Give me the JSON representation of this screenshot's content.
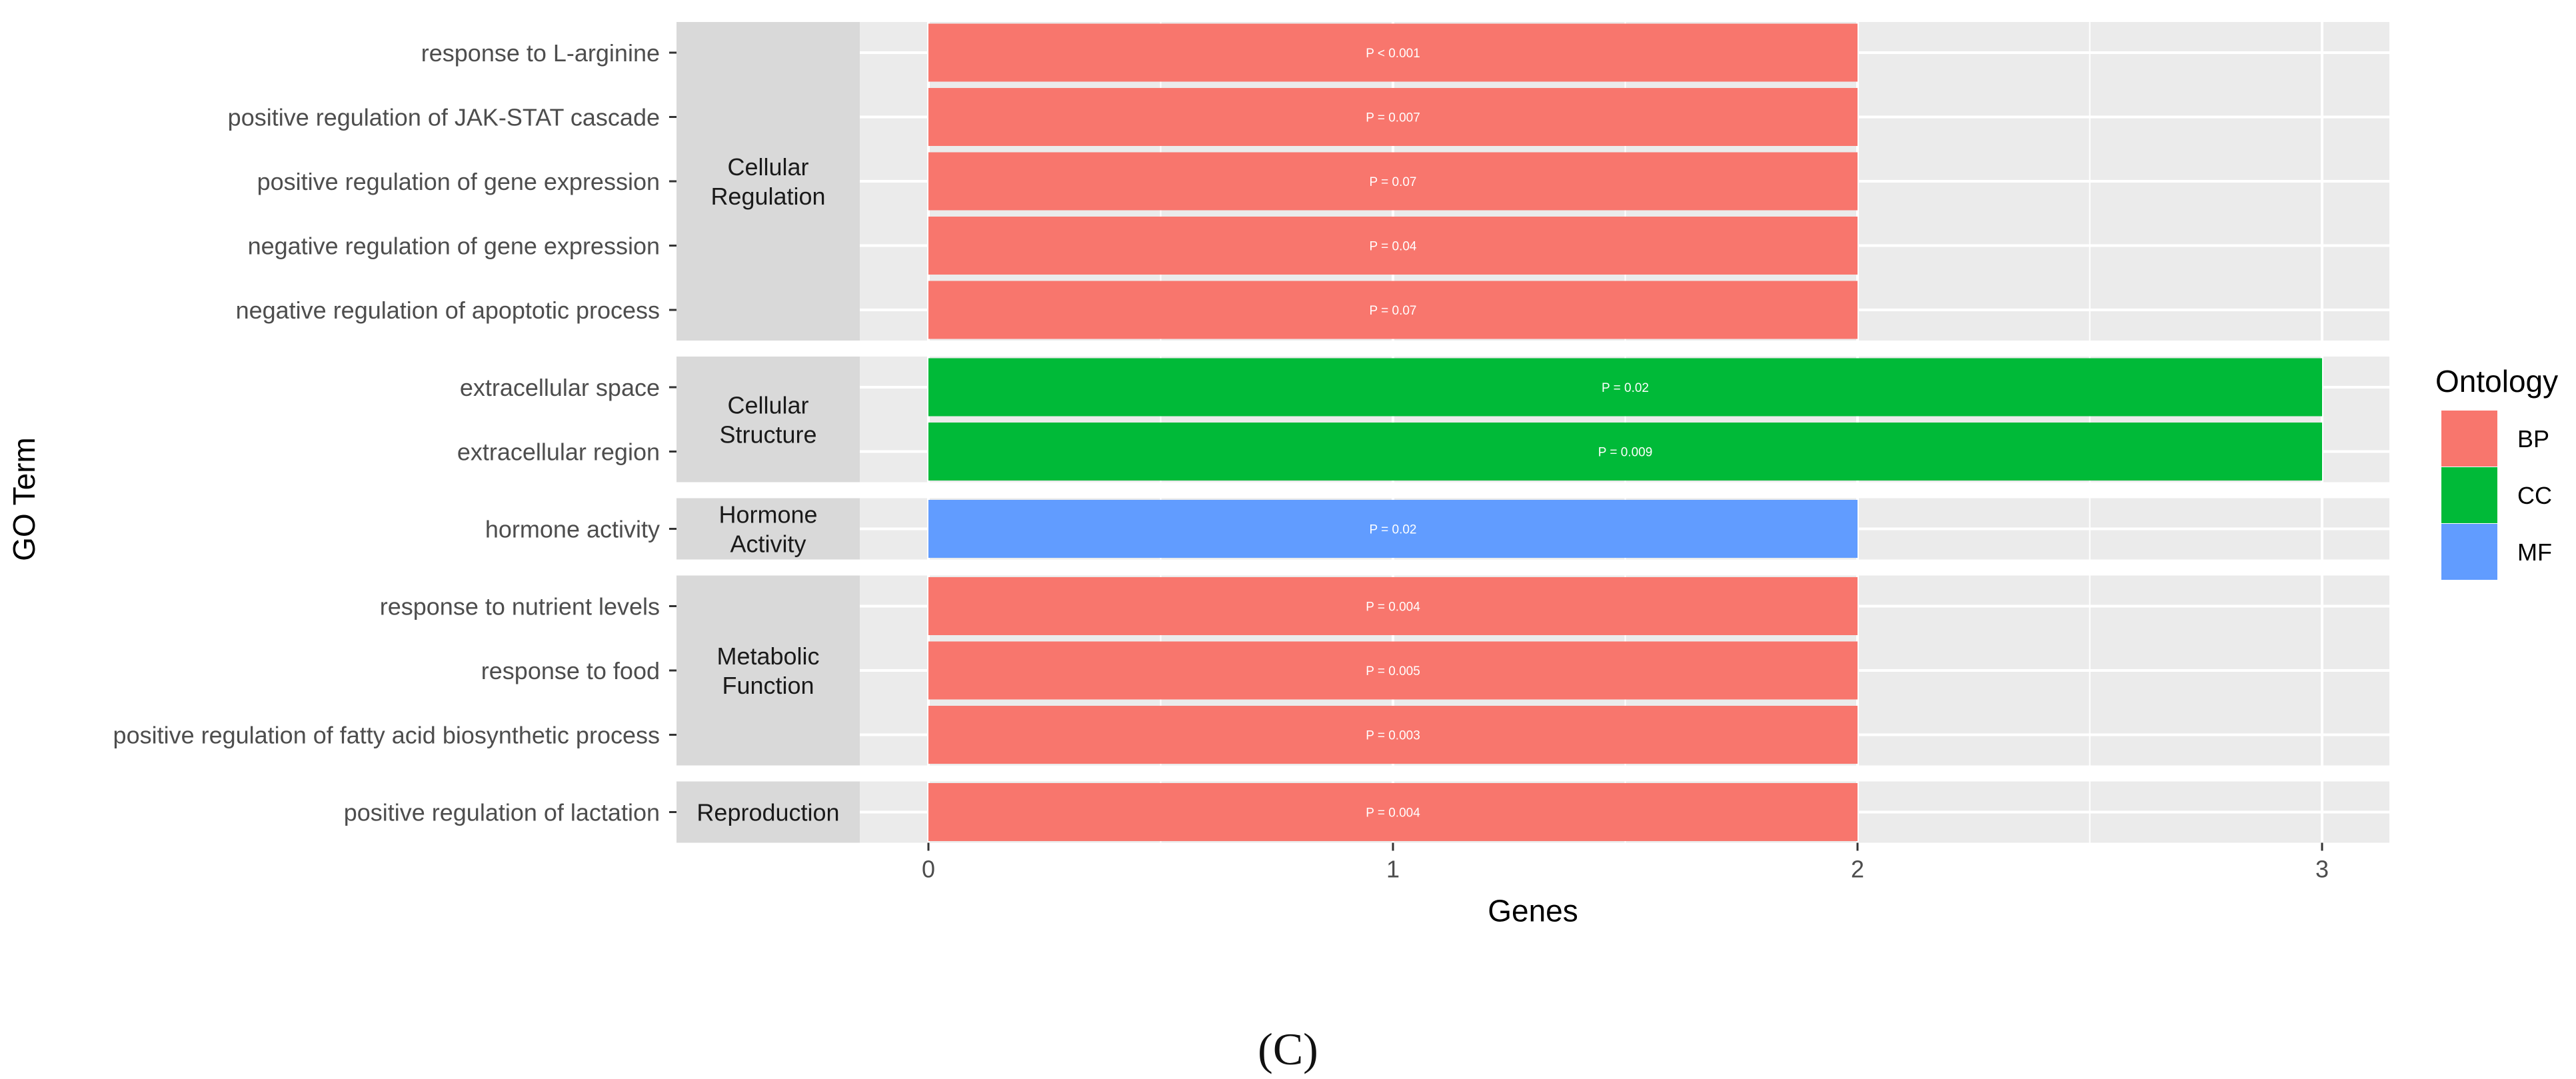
{
  "panel_label": "(C)",
  "colors": {
    "BP": "#F8766D",
    "CC": "#00BA38",
    "MF": "#619CFF",
    "panel_bg": "#EBEBEB",
    "strip_bg": "#D9D9D9",
    "grid": "#FFFFFF"
  },
  "chart_data": {
    "type": "bar",
    "orientation": "horizontal",
    "xlabel": "Genes",
    "ylabel": "GO Term",
    "xlim": [
      -0.55,
      3.15
    ],
    "xticks": [
      0,
      1,
      2,
      3
    ],
    "legend": {
      "title": "Ontology",
      "placement": "right",
      "entries": [
        {
          "key": "BP",
          "label": "BP"
        },
        {
          "key": "CC",
          "label": "CC"
        },
        {
          "key": "MF",
          "label": "MF"
        }
      ]
    },
    "facets": [
      {
        "label_lines": [
          "Cellular",
          "Regulation"
        ],
        "terms": [
          {
            "term": "response to L-arginine",
            "genes": 2,
            "ontology": "BP",
            "p_label": "P < 0.001"
          },
          {
            "term": "positive regulation of JAK-STAT cascade",
            "genes": 2,
            "ontology": "BP",
            "p_label": "P = 0.007"
          },
          {
            "term": "positive regulation of gene expression",
            "genes": 2,
            "ontology": "BP",
            "p_label": "P = 0.07"
          },
          {
            "term": "negative regulation of gene expression",
            "genes": 2,
            "ontology": "BP",
            "p_label": "P = 0.04"
          },
          {
            "term": "negative regulation of apoptotic process",
            "genes": 2,
            "ontology": "BP",
            "p_label": "P = 0.07"
          }
        ]
      },
      {
        "label_lines": [
          "Cellular",
          "Structure"
        ],
        "terms": [
          {
            "term": "extracellular space",
            "genes": 3,
            "ontology": "CC",
            "p_label": "P = 0.02"
          },
          {
            "term": "extracellular region",
            "genes": 3,
            "ontology": "CC",
            "p_label": "P = 0.009"
          }
        ]
      },
      {
        "label_lines": [
          "Hormone",
          "Activity"
        ],
        "terms": [
          {
            "term": "hormone activity",
            "genes": 2,
            "ontology": "MF",
            "p_label": "P = 0.02"
          }
        ]
      },
      {
        "label_lines": [
          "Metabolic",
          "Function"
        ],
        "terms": [
          {
            "term": "response to nutrient levels",
            "genes": 2,
            "ontology": "BP",
            "p_label": "P = 0.004"
          },
          {
            "term": "response to food",
            "genes": 2,
            "ontology": "BP",
            "p_label": "P = 0.005"
          },
          {
            "term": "positive regulation of fatty acid biosynthetic process",
            "genes": 2,
            "ontology": "BP",
            "p_label": "P = 0.003"
          }
        ]
      },
      {
        "label_lines": [
          "Reproduction"
        ],
        "terms": [
          {
            "term": "positive regulation of lactation",
            "genes": 2,
            "ontology": "BP",
            "p_label": "P = 0.004"
          }
        ]
      }
    ]
  }
}
